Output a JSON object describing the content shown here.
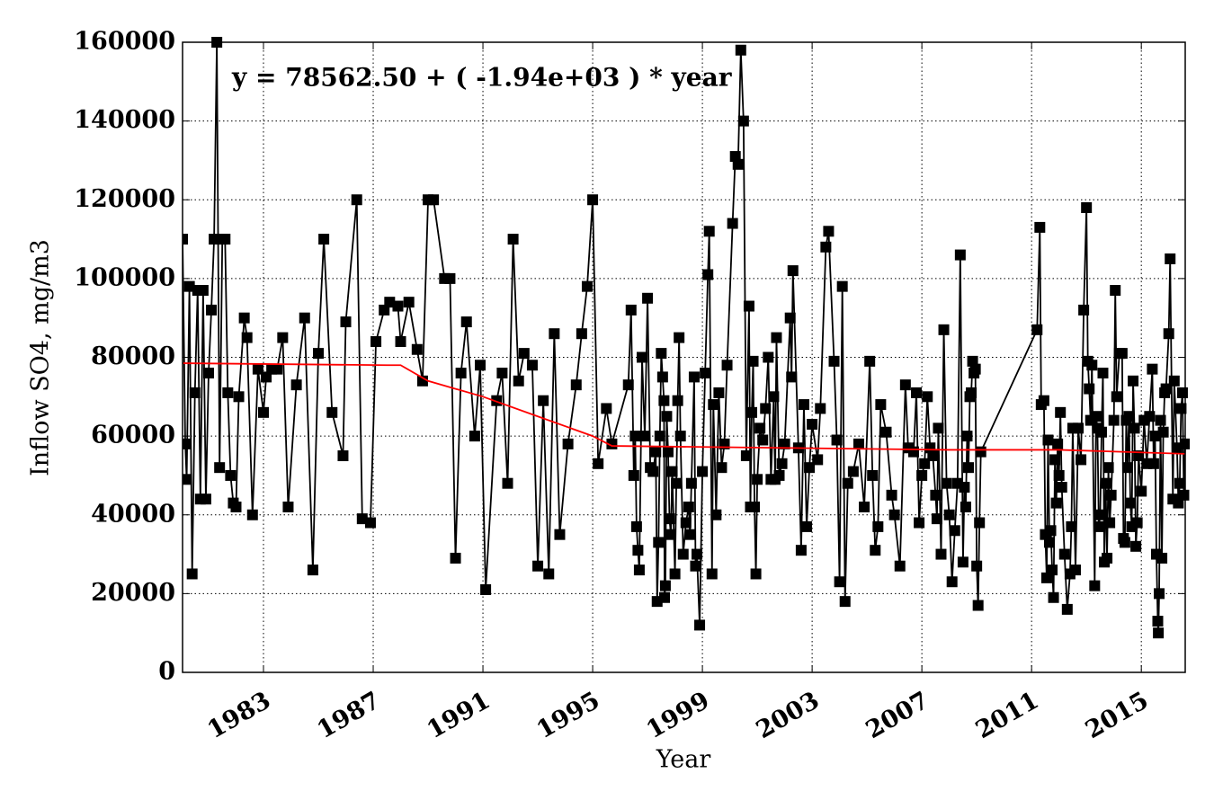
{
  "chart_data": {
    "type": "line",
    "annotation": "y = 78562.50 + ( -1.94e+03 ) * year",
    "annotation_color": "#ff0000",
    "xlabel": "Year",
    "ylabel": "Inflow SO4, mg/m3",
    "xlim": [
      1980.05,
      2016.6
    ],
    "ylim": [
      0,
      160000
    ],
    "xticks": [
      1983,
      1987,
      1991,
      1995,
      1999,
      2003,
      2007,
      2011,
      2015
    ],
    "yticks": [
      0,
      20000,
      40000,
      60000,
      80000,
      100000,
      120000,
      140000,
      160000
    ],
    "grid": true,
    "series": [
      {
        "color": "#000000",
        "marker": "square",
        "x": [
          1980.05,
          1980.15,
          1980.2,
          1980.3,
          1980.4,
          1980.5,
          1980.6,
          1980.7,
          1980.8,
          1980.9,
          1981.0,
          1981.1,
          1981.2,
          1981.3,
          1981.4,
          1981.5,
          1981.6,
          1981.7,
          1981.8,
          1981.9,
          1982.0,
          1982.1,
          1982.3,
          1982.4,
          1982.6,
          1982.8,
          1983.0,
          1983.1,
          1983.3,
          1983.5,
          1983.7,
          1983.9,
          1984.2,
          1984.5,
          1984.8,
          1985.0,
          1985.2,
          1985.5,
          1985.9,
          1986.0,
          1986.4,
          1986.6,
          1986.9,
          1987.1,
          1987.4,
          1987.6,
          1987.9,
          1988.0,
          1988.3,
          1988.6,
          1988.8,
          1989.0,
          1989.2,
          1989.6,
          1989.8,
          1990.0,
          1990.2,
          1990.4,
          1990.7,
          1990.9,
          1991.1,
          1991.5,
          1991.7,
          1991.9,
          1992.1,
          1992.3,
          1992.5,
          1992.8,
          1993.0,
          1993.2,
          1993.4,
          1993.6,
          1993.8,
          1994.1,
          1994.4,
          1994.6,
          1994.8,
          1995.0,
          1995.2,
          1995.5,
          1995.7,
          1996.3,
          1996.4,
          1996.5,
          1996.55,
          1996.6,
          1996.65,
          1996.7,
          1996.8,
          1996.9,
          1997.0,
          1997.1,
          1997.2,
          1997.3,
          1997.35,
          1997.4,
          1997.45,
          1997.5,
          1997.55,
          1997.6,
          1997.62,
          1997.65,
          1997.7,
          1997.75,
          1997.8,
          1997.85,
          1997.9,
          1998.0,
          1998.05,
          1998.1,
          1998.15,
          1998.2,
          1998.3,
          1998.4,
          1998.5,
          1998.55,
          1998.6,
          1998.7,
          1998.75,
          1998.8,
          1998.9,
          1999.0,
          1999.1,
          1999.2,
          1999.25,
          1999.35,
          1999.4,
          1999.5,
          1999.6,
          1999.7,
          1999.8,
          1999.9,
          2000.1,
          2000.2,
          2000.3,
          2000.4,
          2000.5,
          2000.6,
          2000.7,
          2000.75,
          2000.8,
          2000.85,
          2000.9,
          2000.95,
          2001.0,
          2001.1,
          2001.2,
          2001.3,
          2001.4,
          2001.5,
          2001.6,
          2001.65,
          2001.7,
          2001.8,
          2001.9,
          2002.0,
          2002.2,
          2002.25,
          2002.3,
          2002.5,
          2002.6,
          2002.7,
          2002.8,
          2002.9,
          2003.0,
          2003.2,
          2003.3,
          2003.5,
          2003.6,
          2003.8,
          2003.9,
          2004.0,
          2004.1,
          2004.2,
          2004.3,
          2004.5,
          2004.7,
          2004.9,
          2005.1,
          2005.2,
          2005.3,
          2005.4,
          2005.5,
          2005.7,
          2005.9,
          2006.0,
          2006.2,
          2006.4,
          2006.5,
          2006.7,
          2006.8,
          2006.9,
          2007.0,
          2007.1,
          2007.2,
          2007.3,
          2007.4,
          2007.5,
          2007.55,
          2007.6,
          2007.7,
          2007.8,
          2007.9,
          2008.0,
          2008.1,
          2008.2,
          2008.3,
          2008.4,
          2008.5,
          2008.55,
          2008.6,
          2008.65,
          2008.7,
          2008.75,
          2008.8,
          2008.85,
          2008.9,
          2008.95,
          2009.0,
          2009.05,
          2009.1,
          2009.15,
          2011.2,
          2011.3,
          2011.35,
          2011.45,
          2011.5,
          2011.55,
          2011.6,
          2011.65,
          2011.7,
          2011.75,
          2011.8,
          2011.85,
          2011.9,
          2011.95,
          2012.0,
          2012.05,
          2012.1,
          2012.2,
          2012.3,
          2012.4,
          2012.45,
          2012.5,
          2012.6,
          2012.7,
          2012.8,
          2012.9,
          2013.0,
          2013.05,
          2013.1,
          2013.15,
          2013.2,
          2013.3,
          2013.35,
          2013.4,
          2013.45,
          2013.5,
          2013.55,
          2013.6,
          2013.65,
          2013.7,
          2013.75,
          2013.8,
          2013.85,
          2013.9,
          2014.0,
          2014.05,
          2014.1,
          2014.2,
          2014.3,
          2014.35,
          2014.4,
          2014.45,
          2014.5,
          2014.55,
          2014.6,
          2014.65,
          2014.7,
          2014.75,
          2014.8,
          2014.85,
          2014.9,
          2015.0,
          2015.1,
          2015.2,
          2015.3,
          2015.4,
          2015.45,
          2015.5,
          2015.55,
          2015.6,
          2015.62,
          2015.65,
          2015.7,
          2015.75,
          2015.8,
          2015.85,
          2015.9,
          2016.0,
          2016.05,
          2016.15,
          2016.2,
          2016.3,
          2016.35,
          2016.4,
          2016.45,
          2016.5,
          2016.55,
          2016.6
        ],
        "values": [
          110000,
          58000,
          49000,
          98000,
          25000,
          71000,
          97000,
          44000,
          97000,
          44000,
          76000,
          92000,
          110000,
          160000,
          52000,
          110000,
          110000,
          71000,
          50000,
          43000,
          42000,
          70000,
          90000,
          85000,
          40000,
          77000,
          66000,
          75000,
          77000,
          77000,
          85000,
          42000,
          73000,
          90000,
          26000,
          81000,
          110000,
          66000,
          55000,
          89000,
          120000,
          39000,
          38000,
          84000,
          92000,
          94000,
          93000,
          84000,
          94000,
          82000,
          74000,
          120000,
          120000,
          100000,
          100000,
          29000,
          76000,
          89000,
          60000,
          78000,
          21000,
          69000,
          76000,
          48000,
          110000,
          74000,
          81000,
          78000,
          27000,
          69000,
          25000,
          86000,
          35000,
          58000,
          73000,
          86000,
          98000,
          120000,
          53000,
          67000,
          58000,
          73000,
          92000,
          50000,
          60000,
          37000,
          31000,
          26000,
          80000,
          60000,
          95000,
          52000,
          51000,
          56000,
          18000,
          33000,
          60000,
          81000,
          75000,
          69000,
          19000,
          22000,
          65000,
          56000,
          39000,
          35000,
          51000,
          25000,
          48000,
          69000,
          85000,
          60000,
          30000,
          38000,
          42000,
          35000,
          48000,
          75000,
          27000,
          30000,
          12000,
          51000,
          76000,
          101000,
          112000,
          25000,
          68000,
          40000,
          71000,
          52000,
          58000,
          78000,
          114000,
          131000,
          129000,
          158000,
          140000,
          55000,
          93000,
          42000,
          66000,
          79000,
          42000,
          25000,
          49000,
          62000,
          59000,
          67000,
          80000,
          49000,
          70000,
          49000,
          85000,
          50000,
          53000,
          58000,
          90000,
          75000,
          102000,
          57000,
          31000,
          68000,
          37000,
          52000,
          63000,
          54000,
          67000,
          108000,
          112000,
          79000,
          59000,
          23000,
          98000,
          18000,
          48000,
          51000,
          58000,
          42000,
          79000,
          50000,
          31000,
          37000,
          68000,
          61000,
          45000,
          40000,
          27000,
          73000,
          57000,
          56000,
          71000,
          38000,
          50000,
          53000,
          70000,
          57000,
          55000,
          45000,
          39000,
          62000,
          30000,
          87000,
          48000,
          40000,
          23000,
          36000,
          48000,
          106000,
          28000,
          47000,
          42000,
          60000,
          52000,
          70000,
          71000,
          79000,
          76000,
          77000,
          27000,
          17000,
          38000,
          56000,
          87000,
          113000,
          68000,
          69000,
          35000,
          24000,
          59000,
          33000,
          36000,
          26000,
          19000,
          54000,
          43000,
          58000,
          50000,
          66000,
          47000,
          30000,
          16000,
          25000,
          37000,
          62000,
          26000,
          62000,
          54000,
          92000,
          118000,
          79000,
          72000,
          64000,
          78000,
          22000,
          65000,
          62000,
          37000,
          40000,
          61000,
          76000,
          28000,
          48000,
          29000,
          52000,
          38000,
          45000,
          64000,
          97000,
          70000,
          81000,
          81000,
          34000,
          33000,
          64000,
          52000,
          65000,
          43000,
          37000,
          74000,
          62000,
          32000,
          38000,
          55000,
          46000,
          64000,
          53000,
          65000,
          77000,
          53000,
          60000,
          30000,
          13000,
          10000,
          20000,
          64000,
          29000,
          61000,
          71000,
          72000,
          86000,
          105000,
          44000,
          74000,
          57000,
          43000,
          48000,
          67000,
          71000,
          45000,
          58000
        ]
      },
      {
        "color": "#ff0000",
        "x": [
          1980.05,
          1987.5,
          1988.0,
          1989.0,
          1991.0,
          1993.0,
          1995.0,
          1995.7,
          2008.0,
          2012.0,
          2016.6
        ],
        "values": [
          78500,
          78000,
          78000,
          74000,
          70000,
          65000,
          60000,
          57500,
          56500,
          56500,
          55500
        ]
      }
    ]
  }
}
